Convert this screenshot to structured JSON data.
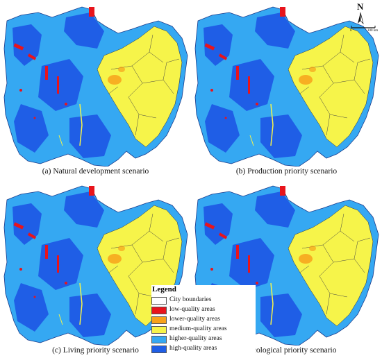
{
  "colors": {
    "low": "#e8141c",
    "lower": "#f7a21b",
    "medium": "#f6f44a",
    "higher": "#35a8f2",
    "high": "#1f5ee6",
    "city_boundary": "#444444"
  },
  "north_arrow": {
    "letter": "N",
    "scale_start": "0",
    "scale_end": "100 km"
  },
  "panels": [
    {
      "caption": "(a) Natural development scenario"
    },
    {
      "caption": "(b) Production priority scenario"
    },
    {
      "caption": "(c) Living priority scenario"
    },
    {
      "caption": "(d) Ecological priority scenario"
    }
  ],
  "legend": {
    "title": "Legend",
    "items": [
      {
        "label": "City boundaries",
        "color": "#ffffff"
      },
      {
        "label": "low-quality areas",
        "color": "#e8141c"
      },
      {
        "label": "lower-quality areas",
        "color": "#f7a21b"
      },
      {
        "label": "medium-quality areas",
        "color": "#f6f44a"
      },
      {
        "label": "higher-quality areas",
        "color": "#35a8f2"
      },
      {
        "label": "high-quality areas",
        "color": "#1f5ee6"
      }
    ]
  }
}
